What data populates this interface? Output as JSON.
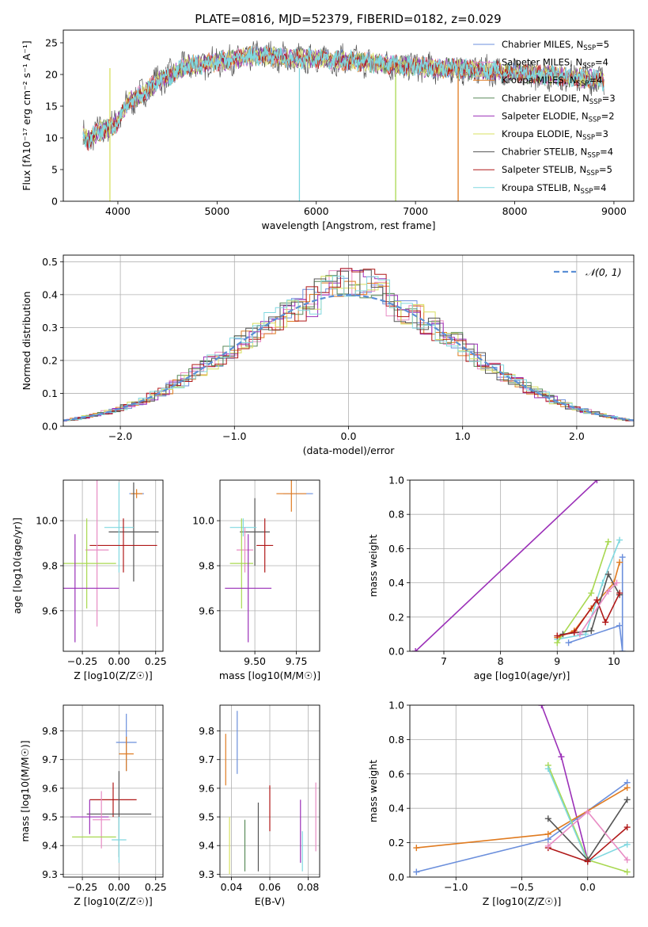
{
  "title": "PLATE=0816, MJD=52379, FIBERID=0182, z=0.029",
  "colors": {
    "chabrier_miles": "#6b8fdc",
    "salpeter_miles": "#e88cc4",
    "kroupa_miles": "#e07b20",
    "chabrier_elodie": "#5a8a5a",
    "salpeter_elodie": "#9b30b8",
    "kroupa_elodie": "#d8e060",
    "chabrier_stelib": "#555555",
    "salpeter_stelib": "#b01818",
    "kroupa_stelib": "#80d8e0",
    "normal": "#5b8fd6",
    "green_yellow": "#a8d850"
  },
  "chart_data": [
    {
      "id": "spectrum",
      "type": "line",
      "xlabel": "wavelength [Angstrom, rest frame]",
      "ylabel": "Flux [fλ10⁻¹⁷ erg cm⁻² s⁻¹ A⁻¹]",
      "xlim": [
        3450,
        9200
      ],
      "ylim": [
        0,
        27
      ],
      "xticks": [
        4000,
        5000,
        6000,
        7000,
        8000,
        9000
      ],
      "yticks": [
        0,
        5,
        10,
        15,
        20,
        25
      ],
      "legend_position": "top-right",
      "continuum": {
        "x": [
          3650,
          3700,
          3800,
          3900,
          4000,
          4100,
          4200,
          4300,
          4400,
          4500,
          4600,
          4700,
          4800,
          4900,
          5000,
          5200,
          5400,
          5600,
          5800,
          6000,
          6200,
          6400,
          6600,
          6800,
          7000,
          7200,
          7400,
          7600,
          7800,
          8000,
          8200,
          8400,
          8600,
          8800,
          8900
        ],
        "y": [
          10.5,
          9.5,
          11,
          11.5,
          12.5,
          15.5,
          16.5,
          17.5,
          19,
          19.5,
          20.5,
          21.5,
          21.5,
          21.8,
          22,
          22.5,
          23,
          22.8,
          22.5,
          22.5,
          22.3,
          22,
          21.8,
          21.5,
          21.3,
          21,
          21,
          20.7,
          20.5,
          20.2,
          20,
          19.8,
          19.5,
          19.3,
          19
        ]
      },
      "series": [
        {
          "name": "Chabrier MILES, N_SSP=5",
          "color_key": "chabrier_miles"
        },
        {
          "name": "Salpeter MILES, N_SSP=4",
          "color_key": "salpeter_miles"
        },
        {
          "name": "Kroupa MILES, N_SSP=4",
          "color_key": "kroupa_miles"
        },
        {
          "name": "Chabrier ELODIE, N_SSP=3",
          "color_key": "chabrier_elodie"
        },
        {
          "name": "Salpeter ELODIE, N_SSP=2",
          "color_key": "salpeter_elodie"
        },
        {
          "name": "Kroupa ELODIE, N_SSP=3",
          "color_key": "kroupa_elodie"
        },
        {
          "name": "Chabrier STELIB, N_SSP=4",
          "color_key": "chabrier_stelib"
        },
        {
          "name": "Salpeter STELIB, N_SSP=5",
          "color_key": "salpeter_stelib"
        },
        {
          "name": "Kroupa STELIB, N_SSP=4",
          "color_key": "kroupa_stelib"
        }
      ]
    },
    {
      "id": "residuals",
      "type": "line",
      "xlabel": "(data-model)/error",
      "ylabel": "Normed distribution",
      "xlim": [
        -2.5,
        2.5
      ],
      "ylim": [
        0,
        0.52
      ],
      "xticks": [
        -2,
        -1,
        0,
        1,
        2
      ],
      "yticks": [
        0.0,
        0.1,
        0.2,
        0.3,
        0.4,
        0.5
      ],
      "grid": true,
      "legend_position": "top-right",
      "gaussian": {
        "name": "N(0,1)",
        "mean": 0,
        "sigma": 1
      },
      "bin_width": 0.1
    },
    {
      "id": "age_vs_Z",
      "type": "scatter",
      "xlabel": "Z [log10(Z/Z☉)]",
      "ylabel": "age  [log10(age/yr)]",
      "xlim": [
        -0.38,
        0.3
      ],
      "ylim": [
        9.42,
        10.18
      ],
      "xticks": [
        -0.25,
        0.0,
        0.25
      ],
      "yticks": [
        9.6,
        9.8,
        10.0
      ],
      "grid": true,
      "points": [
        {
          "c": "chabrier_miles",
          "x": 0.12,
          "xerr": 0.05,
          "y": 10.12,
          "yerr": 0.0
        },
        {
          "c": "kroupa_miles",
          "x": 0.12,
          "xerr": 0.04,
          "y": 10.12,
          "yerr": 0.02
        },
        {
          "c": "chabrier_stelib",
          "x": 0.1,
          "xerr": 0.17,
          "y": 9.95,
          "yerr": 0.22
        },
        {
          "c": "kroupa_stelib",
          "x": 0.0,
          "xerr": 0.1,
          "y": 9.97,
          "yerr": 0.2
        },
        {
          "c": "salpeter_stelib",
          "x": 0.03,
          "xerr": 0.23,
          "y": 9.89,
          "yerr": 0.12
        },
        {
          "c": "salpeter_miles",
          "x": -0.15,
          "xerr": 0.08,
          "y": 9.87,
          "yerr": 0.34
        },
        {
          "c": "green_yellow",
          "x": -0.22,
          "xerr": 0.2,
          "y": 9.81,
          "yerr": 0.2
        },
        {
          "c": "salpeter_elodie",
          "x": -0.3,
          "xerr": 0.3,
          "y": 9.7,
          "yerr": 0.24
        }
      ]
    },
    {
      "id": "age_vs_mass",
      "type": "scatter",
      "xlabel": "mass [log10(M/M☉)]",
      "ylabel": "",
      "xlim": [
        9.29,
        9.89
      ],
      "ylim": [
        9.42,
        10.18
      ],
      "xticks": [
        9.5,
        9.75
      ],
      "yticks": [
        9.6,
        9.8,
        10.0
      ],
      "grid": true,
      "points": [
        {
          "c": "chabrier_miles",
          "x": 9.76,
          "xerr": 0.09,
          "y": 10.12,
          "yerr": 0.0
        },
        {
          "c": "kroupa_miles",
          "x": 9.72,
          "xerr": 0.09,
          "y": 10.12,
          "yerr": 0.08
        },
        {
          "c": "chabrier_stelib",
          "x": 9.5,
          "xerr": 0.09,
          "y": 9.95,
          "yerr": 0.15
        },
        {
          "c": "kroupa_stelib",
          "x": 9.43,
          "xerr": 0.08,
          "y": 9.97,
          "yerr": 0.04
        },
        {
          "c": "salpeter_stelib",
          "x": 9.56,
          "xerr": 0.05,
          "y": 9.89,
          "yerr": 0.12
        },
        {
          "c": "salpeter_miles",
          "x": 9.44,
          "xerr": 0.05,
          "y": 9.87,
          "yerr": 0.1
        },
        {
          "c": "green_yellow",
          "x": 9.42,
          "xerr": 0.07,
          "y": 9.81,
          "yerr": 0.2
        },
        {
          "c": "salpeter_elodie",
          "x": 9.46,
          "xerr": 0.14,
          "y": 9.7,
          "yerr": 0.24
        }
      ]
    },
    {
      "id": "mass_weight_vs_age",
      "type": "line",
      "xlabel": "age  [log10(age/yr)]",
      "ylabel": "mass weight",
      "xlim": [
        6.4,
        10.35
      ],
      "ylim": [
        0,
        1.0
      ],
      "xticks": [
        7,
        8,
        9,
        10
      ],
      "yticks": [
        0.0,
        0.2,
        0.4,
        0.6,
        0.8,
        1.0
      ],
      "grid": true,
      "series": [
        {
          "c": "salpeter_elodie",
          "x": [
            6.5,
            9.7
          ],
          "y": [
            0.0,
            1.0
          ]
        },
        {
          "c": "chabrier_miles",
          "x": [
            9.2,
            10.1,
            10.15,
            10.15
          ],
          "y": [
            0.05,
            0.15,
            0.0,
            0.55
          ]
        },
        {
          "c": "kroupa_miles",
          "x": [
            9.0,
            9.3,
            9.6,
            10.0,
            10.1
          ],
          "y": [
            0.08,
            0.12,
            0.25,
            0.4,
            0.52
          ]
        },
        {
          "c": "kroupa_stelib",
          "x": [
            9.0,
            9.5,
            9.8,
            10.1
          ],
          "y": [
            0.07,
            0.1,
            0.4,
            0.65
          ]
        },
        {
          "c": "green_yellow",
          "x": [
            9.0,
            9.6,
            9.9
          ],
          "y": [
            0.05,
            0.34,
            0.64
          ]
        },
        {
          "c": "chabrier_stelib",
          "x": [
            9.1,
            9.6,
            9.9,
            10.1
          ],
          "y": [
            0.1,
            0.12,
            0.45,
            0.33
          ]
        },
        {
          "c": "salpeter_stelib",
          "x": [
            9.0,
            9.3,
            9.7,
            9.85,
            10.1
          ],
          "y": [
            0.09,
            0.11,
            0.3,
            0.17,
            0.34
          ]
        },
        {
          "c": "salpeter_miles",
          "x": [
            9.4,
            9.9,
            10.05
          ],
          "y": [
            0.1,
            0.35,
            0.4
          ]
        }
      ]
    },
    {
      "id": "mass_vs_Z",
      "type": "scatter",
      "xlabel": "Z [log10(Z/Z☉)]",
      "ylabel": "mass [log10(M/M☉)]",
      "xlim": [
        -0.38,
        0.3
      ],
      "ylim": [
        9.29,
        9.89
      ],
      "xticks": [
        -0.25,
        0.0,
        0.25
      ],
      "yticks": [
        9.3,
        9.4,
        9.5,
        9.6,
        9.7,
        9.8
      ],
      "grid": true,
      "points": [
        {
          "c": "chabrier_miles",
          "x": 0.05,
          "xerr": 0.07,
          "y": 9.76,
          "yerr": 0.1
        },
        {
          "c": "kroupa_miles",
          "x": 0.05,
          "xerr": 0.05,
          "y": 9.72,
          "yerr": 0.06
        },
        {
          "c": "salpeter_stelib",
          "x": -0.04,
          "xerr": 0.16,
          "y": 9.56,
          "yerr": 0.06
        },
        {
          "c": "chabrier_stelib",
          "x": 0.0,
          "xerr": 0.22,
          "y": 9.51,
          "yerr": 0.15
        },
        {
          "c": "salpeter_elodie",
          "x": -0.2,
          "xerr": 0.13,
          "y": 9.5,
          "yerr": 0.06
        },
        {
          "c": "salpeter_miles",
          "x": -0.12,
          "xerr": 0.06,
          "y": 9.49,
          "yerr": 0.1
        },
        {
          "c": "green_yellow",
          "x": -0.17,
          "xerr": 0.15,
          "y": 9.43,
          "yerr": 0.0
        },
        {
          "c": "kroupa_stelib",
          "x": 0.0,
          "xerr": 0.05,
          "y": 9.42,
          "yerr": 0.08
        }
      ]
    },
    {
      "id": "mass_vs_ebv",
      "type": "scatter",
      "xlabel": "E(B-V)",
      "ylabel": "",
      "xlim": [
        0.034,
        0.086
      ],
      "ylim": [
        9.29,
        9.89
      ],
      "xticks": [
        0.04,
        0.06,
        0.08
      ],
      "yticks": [
        9.3,
        9.4,
        9.5,
        9.6,
        9.7,
        9.8
      ],
      "grid": true,
      "points": [
        {
          "c": "kroupa_miles",
          "x": 0.037,
          "xerr": 0.0,
          "y": 9.7,
          "yerr": 0.09
        },
        {
          "c": "chabrier_miles",
          "x": 0.043,
          "xerr": 0.0,
          "y": 9.76,
          "yerr": 0.11
        },
        {
          "c": "kroupa_elodie",
          "x": 0.039,
          "xerr": 0.0,
          "y": 9.4,
          "yerr": 0.1
        },
        {
          "c": "chabrier_elodie",
          "x": 0.047,
          "xerr": 0.0,
          "y": 9.4,
          "yerr": 0.09
        },
        {
          "c": "chabrier_stelib",
          "x": 0.054,
          "xerr": 0.0,
          "y": 9.43,
          "yerr": 0.12
        },
        {
          "c": "salpeter_stelib",
          "x": 0.06,
          "xerr": 0.0,
          "y": 9.53,
          "yerr": 0.08
        },
        {
          "c": "salpeter_elodie",
          "x": 0.076,
          "xerr": 0.0,
          "y": 9.45,
          "yerr": 0.11
        },
        {
          "c": "kroupa_stelib",
          "x": 0.077,
          "xerr": 0.0,
          "y": 9.38,
          "yerr": 0.07
        },
        {
          "c": "salpeter_miles",
          "x": 0.084,
          "xerr": 0.0,
          "y": 9.5,
          "yerr": 0.12
        }
      ]
    },
    {
      "id": "mass_weight_vs_Z",
      "type": "line",
      "xlabel": "Z [log10(Z/Z☉)]",
      "ylabel": "mass weight",
      "xlim": [
        -1.35,
        0.35
      ],
      "ylim": [
        0,
        1.0
      ],
      "xticks": [
        -1.0,
        -0.5,
        0.0
      ],
      "yticks": [
        0.0,
        0.2,
        0.4,
        0.6,
        0.8,
        1.0
      ],
      "grid": true,
      "series": [
        {
          "c": "salpeter_elodie",
          "x": [
            -0.35,
            -0.2,
            0.0
          ],
          "y": [
            1.0,
            0.7,
            0.1
          ]
        },
        {
          "c": "chabrier_miles",
          "x": [
            -1.3,
            -0.3,
            0.3
          ],
          "y": [
            0.03,
            0.22,
            0.55
          ]
        },
        {
          "c": "kroupa_miles",
          "x": [
            -1.3,
            -0.3,
            0.3
          ],
          "y": [
            0.17,
            0.25,
            0.52
          ]
        },
        {
          "c": "green_yellow",
          "x": [
            -0.3,
            0.0,
            0.3
          ],
          "y": [
            0.65,
            0.1,
            0.03
          ]
        },
        {
          "c": "kroupa_stelib",
          "x": [
            -0.3,
            0.0,
            0.3
          ],
          "y": [
            0.63,
            0.09,
            0.19
          ]
        },
        {
          "c": "chabrier_stelib",
          "x": [
            -0.3,
            0.0,
            0.3
          ],
          "y": [
            0.34,
            0.1,
            0.45
          ]
        },
        {
          "c": "salpeter_stelib",
          "x": [
            -0.3,
            0.0,
            0.3
          ],
          "y": [
            0.17,
            0.09,
            0.29
          ]
        },
        {
          "c": "salpeter_miles",
          "x": [
            -0.3,
            0.0,
            0.3
          ],
          "y": [
            0.18,
            0.38,
            0.1
          ]
        }
      ]
    }
  ]
}
